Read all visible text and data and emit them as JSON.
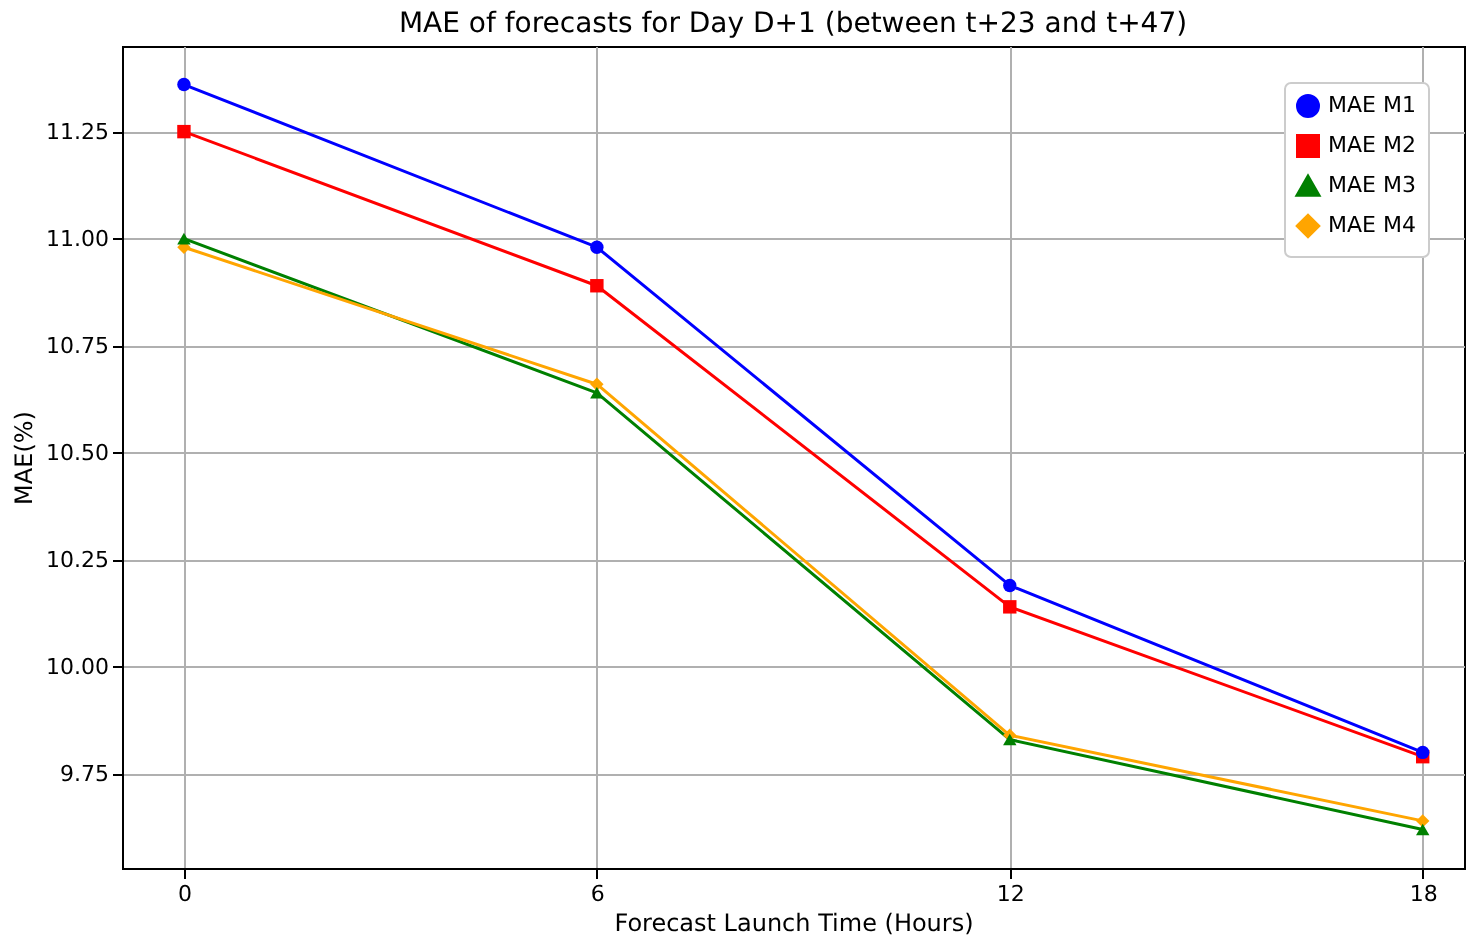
{
  "chart_data": {
    "type": "line",
    "title": "MAE of forecasts for Day D+1 (between t+23 and t+47)",
    "xlabel": "Forecast Launch Time (Hours)",
    "ylabel": "MAE(%)",
    "x": [
      0,
      6,
      12,
      18
    ],
    "series": [
      {
        "name": "MAE M1",
        "color": "#0000ff",
        "marker": "circle",
        "values": [
          11.36,
          10.98,
          10.19,
          9.8
        ]
      },
      {
        "name": "MAE M2",
        "color": "#ff0000",
        "marker": "square",
        "values": [
          11.25,
          10.89,
          10.14,
          9.79
        ]
      },
      {
        "name": "MAE M3",
        "color": "#008000",
        "marker": "triangle",
        "values": [
          11.0,
          10.64,
          9.83,
          9.62
        ]
      },
      {
        "name": "MAE M4",
        "color": "#ffa500",
        "marker": "diamond",
        "values": [
          10.98,
          10.66,
          9.84,
          9.64
        ]
      }
    ],
    "xlim": [
      -0.9,
      18.6
    ],
    "xticks": [
      0,
      6,
      12,
      18
    ],
    "ylim": [
      9.53,
      11.45
    ],
    "yticks": [
      {
        "value": 9.75,
        "label": "9.75"
      },
      {
        "value": 10,
        "label": "10.00"
      },
      {
        "value": 10.25,
        "label": "10.25"
      },
      {
        "value": 10.5,
        "label": "10.50"
      },
      {
        "value": 10.75,
        "label": "10.75"
      },
      {
        "value": 11,
        "label": "11.00"
      },
      {
        "value": 11.25,
        "label": "11.25"
      }
    ],
    "grid": true,
    "legend": "top right",
    "line_style": "solid"
  }
}
